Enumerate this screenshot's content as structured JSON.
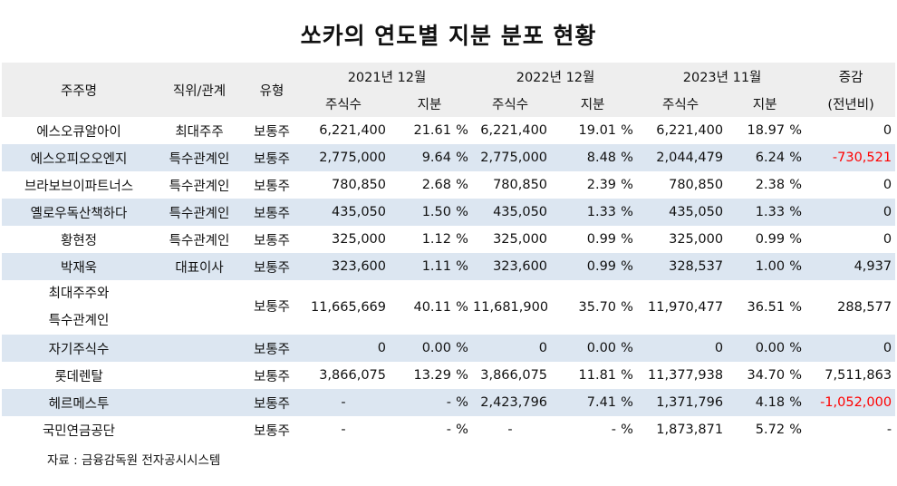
{
  "title": "쏘카의 연도별 지분 분포 현황",
  "header": {
    "shareholder": "주주명",
    "relation": "직위/관계",
    "type": "유형",
    "y2021": "2021년 12월",
    "y2022": "2022년 12월",
    "y2023": "2023년 11월",
    "change_top": "증감",
    "change_sub": "(전년비)",
    "shares": "주식수",
    "stake": "지분"
  },
  "rows": [
    {
      "name": "에스오큐알아이",
      "relation": "최대주주",
      "type": "보통주",
      "s21": "6,221,400",
      "p21": "21.61",
      "u21": "%",
      "s22": "6,221,400",
      "p22": "19.01",
      "u22": "%",
      "s23": "6,221,400",
      "p23": "18.97",
      "u23": "%",
      "chg": "0"
    },
    {
      "name": "에스오피오오엔지",
      "relation": "특수관계인",
      "type": "보통주",
      "s21": "2,775,000",
      "p21": "9.64",
      "u21": "%",
      "s22": "2,775,000",
      "p22": "8.48",
      "u22": "%",
      "s23": "2,044,479",
      "p23": "6.24",
      "u23": "%",
      "chg": "-730,521"
    },
    {
      "name": "브라보브이파트너스",
      "relation": "특수관계인",
      "type": "보통주",
      "s21": "780,850",
      "p21": "2.68",
      "u21": "%",
      "s22": "780,850",
      "p22": "2.39",
      "u22": "%",
      "s23": "780,850",
      "p23": "2.38",
      "u23": "%",
      "chg": "0"
    },
    {
      "name": "옐로우독산책하다",
      "relation": "특수관계인",
      "type": "보통주",
      "s21": "435,050",
      "p21": "1.50",
      "u21": "%",
      "s22": "435,050",
      "p22": "1.33",
      "u22": "%",
      "s23": "435,050",
      "p23": "1.33",
      "u23": "%",
      "chg": "0"
    },
    {
      "name": "황현정",
      "relation": "특수관계인",
      "type": "보통주",
      "s21": "325,000",
      "p21": "1.12",
      "u21": "%",
      "s22": "325,000",
      "p22": "0.99",
      "u22": "%",
      "s23": "325,000",
      "p23": "0.99",
      "u23": "%",
      "chg": "0"
    },
    {
      "name": "박재욱",
      "relation": "대표이사",
      "type": "보통주",
      "s21": "323,600",
      "p21": "1.11",
      "u21": "%",
      "s22": "323,600",
      "p22": "0.99",
      "u22": "%",
      "s23": "328,537",
      "p23": "1.00",
      "u23": "%",
      "chg": "4,937"
    },
    {
      "name_line1": "최대주주와",
      "name_line2": "특수관계인",
      "relation": "",
      "type": "보통주",
      "s21": "11,665,669",
      "p21": "40.11",
      "u21": "%",
      "s22": "11,681,900",
      "p22": "35.70",
      "u22": "%",
      "s23": "11,970,477",
      "p23": "36.51",
      "u23": "%",
      "chg": "288,577"
    },
    {
      "name": "자기주식수",
      "relation": "",
      "type": "보통주",
      "s21": "0",
      "p21": "0.00",
      "u21": "%",
      "s22": "0",
      "p22": "0.00",
      "u22": "%",
      "s23": "0",
      "p23": "0.00",
      "u23": "%",
      "chg": "0"
    },
    {
      "name": "롯데렌탈",
      "relation": "",
      "type": "보통주",
      "s21": "3,866,075",
      "p21": "13.29",
      "u21": "%",
      "s22": "3,866,075",
      "p22": "11.81",
      "u22": "%",
      "s23": "11,377,938",
      "p23": "34.70",
      "u23": "%",
      "chg": "7,511,863"
    },
    {
      "name": "헤르메스투",
      "relation": "",
      "type": "보통주",
      "s21": "-",
      "p21": "-",
      "u21": "%",
      "s22": "2,423,796",
      "p22": "7.41",
      "u22": "%",
      "s23": "1,371,796",
      "p23": "4.18",
      "u23": "%",
      "chg": "-1,052,000"
    },
    {
      "name": "국민연금공단",
      "relation": "",
      "type": "보통주",
      "s21": "-",
      "p21": "-",
      "u21": "%",
      "s22": "-",
      "p22": "-",
      "u22": "%",
      "s23": "1,873,871",
      "p23": "5.72",
      "u23": "%",
      "chg": "-"
    }
  ],
  "source": "자료 : 금융감독원 전자공시시스템",
  "colors": {
    "shade": "#dce6f1",
    "header": "#eeeeee",
    "negative": "#ff0000"
  }
}
